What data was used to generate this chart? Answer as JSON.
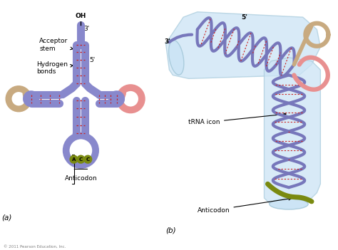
{
  "background_color": "#ffffff",
  "fig_width": 4.74,
  "fig_height": 3.51,
  "dpi": 100,
  "colors": {
    "purple": "#8888cc",
    "purple_fill": "#9999cc",
    "tan": "#c8aa80",
    "pink": "#e89090",
    "olive": "#7a8a10",
    "red_dashed": "#cc2222",
    "light_blue": "#cce4f5",
    "blue_edge": "#aaccdd",
    "blue_strand": "#7777bb"
  },
  "labels": {
    "OH": "OH",
    "acceptor_stem": "Acceptor\nstem",
    "hydrogen_bonds": "Hydrogen\nbonds",
    "anticodon_bottom": "Anticodon",
    "acc_letters": [
      "A",
      "C",
      "C"
    ],
    "panel_a": "(a)",
    "panel_b": "(b)",
    "trna_icon": "tRNA icon",
    "anticodon_b": "Anticodon",
    "copyright": "© 2011 Pearson Education, Inc."
  },
  "font_sizes": {
    "label": 6.5,
    "small": 5.5,
    "panel": 7.5,
    "acc": 5.0
  }
}
